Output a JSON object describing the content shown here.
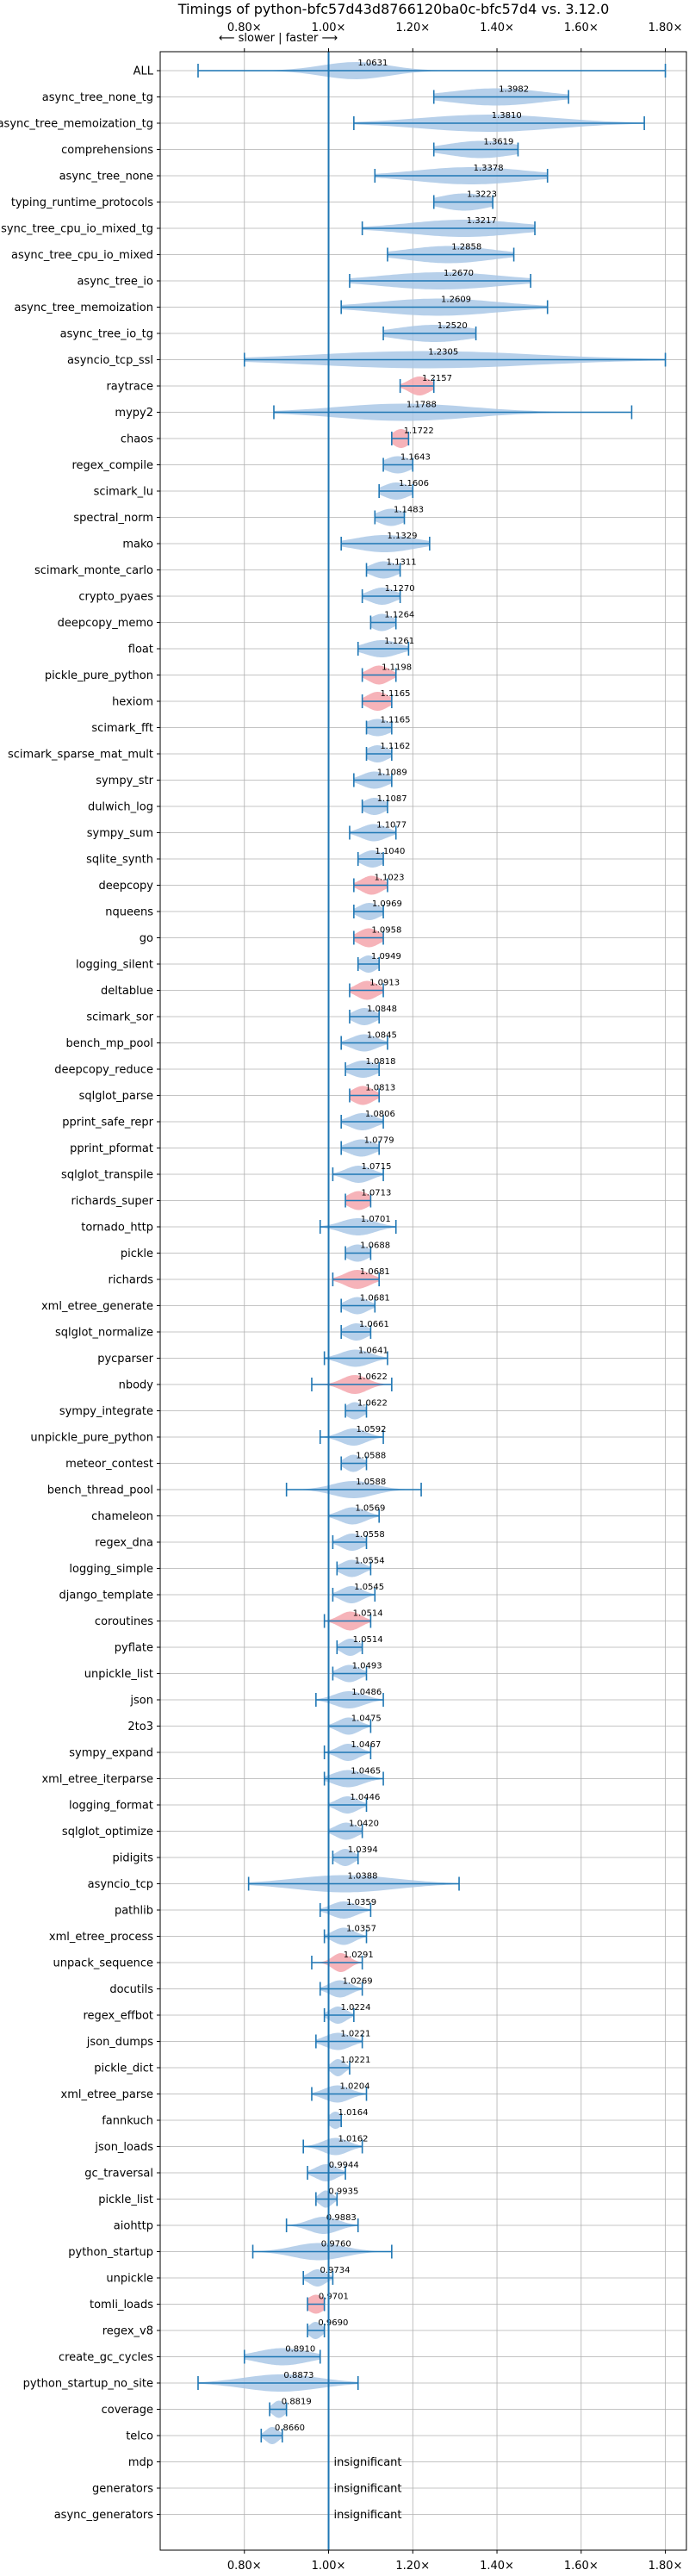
{
  "chart_data": {
    "type": "violin",
    "title": "Timings of python-bfc57d43d8766120ba0c-bfc57d4 vs. 3.12.0",
    "direction_label": "⟵ slower | faster ⟶",
    "xlim": [
      0.6,
      1.85
    ],
    "x_ticks": [
      0.8,
      1.0,
      1.2,
      1.4,
      1.6,
      1.8
    ],
    "x_tick_labels": [
      "0.80×",
      "1.00×",
      "1.20×",
      "1.40×",
      "1.60×",
      "1.80×"
    ],
    "reference_line": 1.0,
    "colors": {
      "normal": "#aac8e6",
      "highlight": "#f4a6ad",
      "line": "#1f77b4"
    },
    "insignificant_label": "insignificant",
    "benchmarks": [
      {
        "name": "ALL",
        "value": "1.0631",
        "center": 1.0631,
        "min": 0.69,
        "max": 1.8,
        "spread": 0.08,
        "highlight": false
      },
      {
        "name": "async_tree_none_tg",
        "value": "1.3982",
        "center": 1.3982,
        "min": 1.25,
        "max": 1.57,
        "spread": 0.11,
        "highlight": false
      },
      {
        "name": "async_tree_memoization_tg",
        "value": "1.3810",
        "center": 1.381,
        "min": 1.06,
        "max": 1.75,
        "spread": 0.16,
        "highlight": false
      },
      {
        "name": "comprehensions",
        "value": "1.3619",
        "center": 1.3619,
        "min": 1.25,
        "max": 1.45,
        "spread": 0.08,
        "highlight": false
      },
      {
        "name": "async_tree_none",
        "value": "1.3378",
        "center": 1.3378,
        "min": 1.11,
        "max": 1.52,
        "spread": 0.13,
        "highlight": false
      },
      {
        "name": "typing_runtime_protocols",
        "value": "1.3223",
        "center": 1.3223,
        "min": 1.25,
        "max": 1.39,
        "spread": 0.06,
        "highlight": false
      },
      {
        "name": "async_tree_cpu_io_mixed_tg",
        "value": "1.3217",
        "center": 1.3217,
        "min": 1.08,
        "max": 1.49,
        "spread": 0.13,
        "highlight": false
      },
      {
        "name": "async_tree_cpu_io_mixed",
        "value": "1.2858",
        "center": 1.2858,
        "min": 1.14,
        "max": 1.44,
        "spread": 0.1,
        "highlight": false
      },
      {
        "name": "async_tree_io",
        "value": "1.2670",
        "center": 1.267,
        "min": 1.05,
        "max": 1.48,
        "spread": 0.14,
        "highlight": false
      },
      {
        "name": "async_tree_memoization",
        "value": "1.2609",
        "center": 1.2609,
        "min": 1.03,
        "max": 1.52,
        "spread": 0.14,
        "highlight": false
      },
      {
        "name": "async_tree_io_tg",
        "value": "1.2520",
        "center": 1.252,
        "min": 1.13,
        "max": 1.35,
        "spread": 0.09,
        "highlight": false
      },
      {
        "name": "asyncio_tcp_ssl",
        "value": "1.2305",
        "center": 1.2305,
        "min": 0.8,
        "max": 1.8,
        "spread": 0.26,
        "highlight": false
      },
      {
        "name": "raytrace",
        "value": "1.2157",
        "center": 1.2157,
        "min": 1.17,
        "max": 1.25,
        "spread": 0.025,
        "highlight": true
      },
      {
        "name": "mypy2",
        "value": "1.1788",
        "center": 1.1788,
        "min": 0.87,
        "max": 1.72,
        "spread": 0.16,
        "highlight": false
      },
      {
        "name": "chaos",
        "value": "1.1722",
        "center": 1.1722,
        "min": 1.15,
        "max": 1.19,
        "spread": 0.02,
        "highlight": true
      },
      {
        "name": "regex_compile",
        "value": "1.1643",
        "center": 1.1643,
        "min": 1.13,
        "max": 1.2,
        "spread": 0.03,
        "highlight": false
      },
      {
        "name": "scimark_lu",
        "value": "1.1606",
        "center": 1.1606,
        "min": 1.12,
        "max": 1.2,
        "spread": 0.03,
        "highlight": false
      },
      {
        "name": "spectral_norm",
        "value": "1.1483",
        "center": 1.1483,
        "min": 1.11,
        "max": 1.18,
        "spread": 0.03,
        "highlight": false
      },
      {
        "name": "mako",
        "value": "1.1329",
        "center": 1.1329,
        "min": 1.03,
        "max": 1.24,
        "spread": 0.07,
        "highlight": false
      },
      {
        "name": "scimark_monte_carlo",
        "value": "1.1311",
        "center": 1.1311,
        "min": 1.09,
        "max": 1.17,
        "spread": 0.03,
        "highlight": false
      },
      {
        "name": "crypto_pyaes",
        "value": "1.1270",
        "center": 1.127,
        "min": 1.08,
        "max": 1.17,
        "spread": 0.03,
        "highlight": false
      },
      {
        "name": "deepcopy_memo",
        "value": "1.1264",
        "center": 1.1264,
        "min": 1.1,
        "max": 1.16,
        "spread": 0.025,
        "highlight": false
      },
      {
        "name": "float",
        "value": "1.1261",
        "center": 1.1261,
        "min": 1.07,
        "max": 1.19,
        "spread": 0.04,
        "highlight": false
      },
      {
        "name": "pickle_pure_python",
        "value": "1.1198",
        "center": 1.1198,
        "min": 1.08,
        "max": 1.16,
        "spread": 0.025,
        "highlight": true
      },
      {
        "name": "hexiom",
        "value": "1.1165",
        "center": 1.1165,
        "min": 1.08,
        "max": 1.15,
        "spread": 0.025,
        "highlight": true
      },
      {
        "name": "scimark_fft",
        "value": "1.1165",
        "center": 1.1165,
        "min": 1.09,
        "max": 1.15,
        "spread": 0.03,
        "highlight": false
      },
      {
        "name": "scimark_sparse_mat_mult",
        "value": "1.1162",
        "center": 1.1162,
        "min": 1.09,
        "max": 1.15,
        "spread": 0.025,
        "highlight": false
      },
      {
        "name": "sympy_str",
        "value": "1.1089",
        "center": 1.1089,
        "min": 1.06,
        "max": 1.15,
        "spread": 0.03,
        "highlight": false
      },
      {
        "name": "dulwich_log",
        "value": "1.1087",
        "center": 1.1087,
        "min": 1.08,
        "max": 1.14,
        "spread": 0.025,
        "highlight": false
      },
      {
        "name": "sympy_sum",
        "value": "1.1077",
        "center": 1.1077,
        "min": 1.05,
        "max": 1.16,
        "spread": 0.03,
        "highlight": false
      },
      {
        "name": "sqlite_synth",
        "value": "1.1040",
        "center": 1.104,
        "min": 1.07,
        "max": 1.13,
        "spread": 0.025,
        "highlight": false
      },
      {
        "name": "deepcopy",
        "value": "1.1023",
        "center": 1.1023,
        "min": 1.06,
        "max": 1.14,
        "spread": 0.025,
        "highlight": true
      },
      {
        "name": "nqueens",
        "value": "1.0969",
        "center": 1.0969,
        "min": 1.06,
        "max": 1.13,
        "spread": 0.025,
        "highlight": false
      },
      {
        "name": "go",
        "value": "1.0958",
        "center": 1.0958,
        "min": 1.06,
        "max": 1.13,
        "spread": 0.025,
        "highlight": true
      },
      {
        "name": "logging_silent",
        "value": "1.0949",
        "center": 1.0949,
        "min": 1.07,
        "max": 1.12,
        "spread": 0.02,
        "highlight": false
      },
      {
        "name": "deltablue",
        "value": "1.0913",
        "center": 1.0913,
        "min": 1.05,
        "max": 1.13,
        "spread": 0.025,
        "highlight": true
      },
      {
        "name": "scimark_sor",
        "value": "1.0848",
        "center": 1.0848,
        "min": 1.05,
        "max": 1.12,
        "spread": 0.025,
        "highlight": false
      },
      {
        "name": "bench_mp_pool",
        "value": "1.0845",
        "center": 1.0845,
        "min": 1.03,
        "max": 1.14,
        "spread": 0.03,
        "highlight": false
      },
      {
        "name": "deepcopy_reduce",
        "value": "1.0818",
        "center": 1.0818,
        "min": 1.04,
        "max": 1.12,
        "spread": 0.03,
        "highlight": false
      },
      {
        "name": "sqlglot_parse",
        "value": "1.0813",
        "center": 1.0813,
        "min": 1.05,
        "max": 1.12,
        "spread": 0.025,
        "highlight": true
      },
      {
        "name": "pprint_safe_repr",
        "value": "1.0806",
        "center": 1.0806,
        "min": 1.03,
        "max": 1.13,
        "spread": 0.03,
        "highlight": false
      },
      {
        "name": "pprint_pformat",
        "value": "1.0779",
        "center": 1.0779,
        "min": 1.03,
        "max": 1.12,
        "spread": 0.03,
        "highlight": false
      },
      {
        "name": "sqlglot_transpile",
        "value": "1.0715",
        "center": 1.0715,
        "min": 1.01,
        "max": 1.13,
        "spread": 0.03,
        "highlight": false
      },
      {
        "name": "richards_super",
        "value": "1.0713",
        "center": 1.0713,
        "min": 1.04,
        "max": 1.1,
        "spread": 0.025,
        "highlight": true
      },
      {
        "name": "tornado_http",
        "value": "1.0701",
        "center": 1.0701,
        "min": 0.98,
        "max": 1.16,
        "spread": 0.04,
        "highlight": false
      },
      {
        "name": "pickle",
        "value": "1.0688",
        "center": 1.0688,
        "min": 1.04,
        "max": 1.1,
        "spread": 0.025,
        "highlight": false
      },
      {
        "name": "richards",
        "value": "1.0681",
        "center": 1.0681,
        "min": 1.01,
        "max": 1.12,
        "spread": 0.03,
        "highlight": true
      },
      {
        "name": "xml_etree_generate",
        "value": "1.0681",
        "center": 1.0681,
        "min": 1.03,
        "max": 1.11,
        "spread": 0.025,
        "highlight": false
      },
      {
        "name": "sqlglot_normalize",
        "value": "1.0661",
        "center": 1.0661,
        "min": 1.03,
        "max": 1.1,
        "spread": 0.025,
        "highlight": false
      },
      {
        "name": "pycparser",
        "value": "1.0641",
        "center": 1.0641,
        "min": 0.99,
        "max": 1.14,
        "spread": 0.035,
        "highlight": false
      },
      {
        "name": "nbody",
        "value": "1.0622",
        "center": 1.0622,
        "min": 0.96,
        "max": 1.15,
        "spread": 0.03,
        "highlight": true
      },
      {
        "name": "sympy_integrate",
        "value": "1.0622",
        "center": 1.0622,
        "min": 1.04,
        "max": 1.09,
        "spread": 0.02,
        "highlight": false
      },
      {
        "name": "unpickle_pure_python",
        "value": "1.0592",
        "center": 1.0592,
        "min": 0.98,
        "max": 1.13,
        "spread": 0.03,
        "highlight": false
      },
      {
        "name": "meteor_contest",
        "value": "1.0588",
        "center": 1.0588,
        "min": 1.03,
        "max": 1.09,
        "spread": 0.02,
        "highlight": false
      },
      {
        "name": "bench_thread_pool",
        "value": "1.0588",
        "center": 1.0588,
        "min": 0.9,
        "max": 1.22,
        "spread": 0.05,
        "highlight": false
      },
      {
        "name": "chameleon",
        "value": "1.0569",
        "center": 1.0569,
        "min": 1.0,
        "max": 1.12,
        "spread": 0.03,
        "highlight": false
      },
      {
        "name": "regex_dna",
        "value": "1.0558",
        "center": 1.0558,
        "min": 1.01,
        "max": 1.09,
        "spread": 0.025,
        "highlight": false
      },
      {
        "name": "logging_simple",
        "value": "1.0554",
        "center": 1.0554,
        "min": 1.02,
        "max": 1.1,
        "spread": 0.025,
        "highlight": false
      },
      {
        "name": "django_template",
        "value": "1.0545",
        "center": 1.0545,
        "min": 1.01,
        "max": 1.11,
        "spread": 0.025,
        "highlight": false
      },
      {
        "name": "coroutines",
        "value": "1.0514",
        "center": 1.0514,
        "min": 0.99,
        "max": 1.1,
        "spread": 0.025,
        "highlight": true
      },
      {
        "name": "pyflate",
        "value": "1.0514",
        "center": 1.0514,
        "min": 1.02,
        "max": 1.08,
        "spread": 0.02,
        "highlight": false
      },
      {
        "name": "unpickle_list",
        "value": "1.0493",
        "center": 1.0493,
        "min": 1.01,
        "max": 1.09,
        "spread": 0.025,
        "highlight": false
      },
      {
        "name": "json",
        "value": "1.0486",
        "center": 1.0486,
        "min": 0.97,
        "max": 1.13,
        "spread": 0.035,
        "highlight": false
      },
      {
        "name": "2to3",
        "value": "1.0475",
        "center": 1.0475,
        "min": 1.0,
        "max": 1.1,
        "spread": 0.025,
        "highlight": false
      },
      {
        "name": "sympy_expand",
        "value": "1.0467",
        "center": 1.0467,
        "min": 0.99,
        "max": 1.1,
        "spread": 0.025,
        "highlight": false
      },
      {
        "name": "xml_etree_iterparse",
        "value": "1.0465",
        "center": 1.0465,
        "min": 0.99,
        "max": 1.13,
        "spread": 0.035,
        "highlight": false
      },
      {
        "name": "logging_format",
        "value": "1.0446",
        "center": 1.0446,
        "min": 1.0,
        "max": 1.09,
        "spread": 0.025,
        "highlight": false
      },
      {
        "name": "sqlglot_optimize",
        "value": "1.0420",
        "center": 1.042,
        "min": 1.0,
        "max": 1.08,
        "spread": 0.025,
        "highlight": false
      },
      {
        "name": "pidigits",
        "value": "1.0394",
        "center": 1.0394,
        "min": 1.01,
        "max": 1.07,
        "spread": 0.02,
        "highlight": false
      },
      {
        "name": "asyncio_tcp",
        "value": "1.0388",
        "center": 1.0388,
        "min": 0.81,
        "max": 1.31,
        "spread": 0.12,
        "highlight": false
      },
      {
        "name": "pathlib",
        "value": "1.0359",
        "center": 1.0359,
        "min": 0.98,
        "max": 1.1,
        "spread": 0.03,
        "highlight": false
      },
      {
        "name": "xml_etree_process",
        "value": "1.0357",
        "center": 1.0357,
        "min": 0.99,
        "max": 1.09,
        "spread": 0.025,
        "highlight": false
      },
      {
        "name": "unpack_sequence",
        "value": "1.0291",
        "center": 1.0291,
        "min": 0.96,
        "max": 1.08,
        "spread": 0.02,
        "highlight": true
      },
      {
        "name": "docutils",
        "value": "1.0269",
        "center": 1.0269,
        "min": 0.98,
        "max": 1.08,
        "spread": 0.025,
        "highlight": false
      },
      {
        "name": "regex_effbot",
        "value": "1.0224",
        "center": 1.0224,
        "min": 0.99,
        "max": 1.06,
        "spread": 0.02,
        "highlight": false
      },
      {
        "name": "json_dumps",
        "value": "1.0221",
        "center": 1.0221,
        "min": 0.97,
        "max": 1.08,
        "spread": 0.03,
        "highlight": false
      },
      {
        "name": "pickle_dict",
        "value": "1.0221",
        "center": 1.0221,
        "min": 1.0,
        "max": 1.05,
        "spread": 0.015,
        "highlight": false
      },
      {
        "name": "xml_etree_parse",
        "value": "1.0204",
        "center": 1.0204,
        "min": 0.96,
        "max": 1.09,
        "spread": 0.03,
        "highlight": false
      },
      {
        "name": "fannkuch",
        "value": "1.0164",
        "center": 1.0164,
        "min": 1.0,
        "max": 1.03,
        "spread": 0.015,
        "highlight": false
      },
      {
        "name": "json_loads",
        "value": "1.0162",
        "center": 1.0162,
        "min": 0.94,
        "max": 1.08,
        "spread": 0.03,
        "highlight": false
      },
      {
        "name": "gc_traversal",
        "value": "0.9944",
        "center": 0.9944,
        "min": 0.95,
        "max": 1.04,
        "spread": 0.025,
        "highlight": false
      },
      {
        "name": "pickle_list",
        "value": "0.9935",
        "center": 0.9935,
        "min": 0.97,
        "max": 1.02,
        "spread": 0.015,
        "highlight": false
      },
      {
        "name": "aiohttp",
        "value": "0.9883",
        "center": 0.9883,
        "min": 0.9,
        "max": 1.07,
        "spread": 0.035,
        "highlight": false
      },
      {
        "name": "python_startup",
        "value": "0.9760",
        "center": 0.976,
        "min": 0.82,
        "max": 1.15,
        "spread": 0.06,
        "highlight": false
      },
      {
        "name": "unpickle",
        "value": "0.9734",
        "center": 0.9734,
        "min": 0.94,
        "max": 1.01,
        "spread": 0.02,
        "highlight": false
      },
      {
        "name": "tomli_loads",
        "value": "0.9701",
        "center": 0.9701,
        "min": 0.95,
        "max": 0.99,
        "spread": 0.02,
        "highlight": true
      },
      {
        "name": "regex_v8",
        "value": "0.9690",
        "center": 0.969,
        "min": 0.95,
        "max": 0.99,
        "spread": 0.015,
        "highlight": false
      },
      {
        "name": "create_gc_cycles",
        "value": "0.8910",
        "center": 0.891,
        "min": 0.8,
        "max": 0.98,
        "spread": 0.06,
        "highlight": false
      },
      {
        "name": "python_startup_no_site",
        "value": "0.8873",
        "center": 0.8873,
        "min": 0.69,
        "max": 1.07,
        "spread": 0.09,
        "highlight": false
      },
      {
        "name": "coverage",
        "value": "0.8819",
        "center": 0.8819,
        "min": 0.86,
        "max": 0.9,
        "spread": 0.015,
        "highlight": false
      },
      {
        "name": "telco",
        "value": "0.8660",
        "center": 0.866,
        "min": 0.84,
        "max": 0.89,
        "spread": 0.015,
        "highlight": false
      },
      {
        "name": "mdp",
        "value": "",
        "center": null,
        "min": null,
        "max": null,
        "spread": 0,
        "highlight": false,
        "insignificant": true
      },
      {
        "name": "generators",
        "value": "",
        "center": null,
        "min": null,
        "max": null,
        "spread": 0,
        "highlight": false,
        "insignificant": true
      },
      {
        "name": "async_generators",
        "value": "",
        "center": null,
        "min": null,
        "max": null,
        "spread": 0,
        "highlight": false,
        "insignificant": true
      }
    ]
  }
}
